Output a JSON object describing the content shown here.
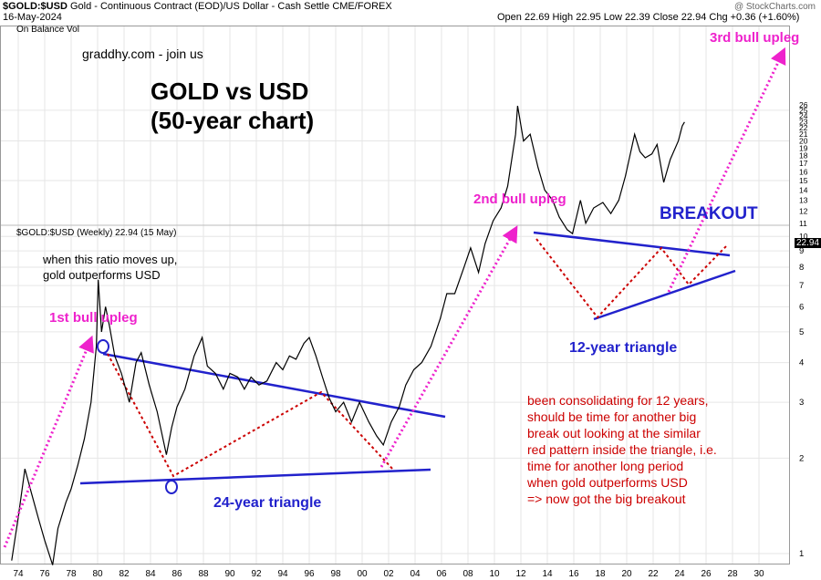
{
  "header": {
    "symbol": "$GOLD:$USD",
    "description": "Gold - Continuous Contract (EOD)/US Dollar - Cash Settle",
    "exchange": "CME/FOREX",
    "date": "16-May-2024",
    "credit": "@ StockCharts.com",
    "ohlc": "Open 22.69  High 22.95  Low 22.39  Close 22.94  Chg +0.36 (+1.60%)"
  },
  "indicator_label": "On Balance Vol",
  "price_label": "$GOLD:$USD (Weekly) 22.94 (15 May)",
  "last_value": "22.94",
  "watermark": "graddhy.com - join us",
  "title_line1": "GOLD vs USD",
  "title_line2": "(50-year chart)",
  "annotations": {
    "ratio_note_1": "when this ratio moves up,",
    "ratio_note_2": "gold outperforms USD",
    "upleg1": "1st bull upleg",
    "upleg2": "2nd bull upleg",
    "upleg3": "3rd bull upleg",
    "breakout": "BREAKOUT",
    "tri12": "12-year triangle",
    "tri24": "24-year triangle",
    "red_note": "been consolidating for 12 years,\nshould be time for another big\nbreak out looking at the similar\nred pattern inside the triangle, i.e.\ntime for another long period\nwhen gold outperforms USD\n=> now got the big breakout"
  },
  "colors": {
    "price_line": "#000000",
    "trendline": "#2222cc",
    "upleg_arrow": "#ee22cc",
    "pattern": "#cc0000",
    "grid": "#e6e6e6"
  },
  "chart_data": {
    "type": "line",
    "title": "GOLD vs USD (50-year chart)",
    "y_scale": "log",
    "x_ticks": [
      "74",
      "76",
      "78",
      "80",
      "82",
      "84",
      "86",
      "88",
      "90",
      "92",
      "94",
      "96",
      "98",
      "00",
      "02",
      "04",
      "06",
      "08",
      "10",
      "12",
      "14",
      "16",
      "18",
      "20",
      "22",
      "24",
      "26",
      "28",
      "30"
    ],
    "y_ticks": [
      1,
      2,
      3,
      4,
      5,
      6,
      7,
      8,
      9,
      10,
      11,
      12,
      13,
      14,
      15,
      16,
      17,
      18,
      19,
      20,
      21,
      22,
      23,
      24,
      25,
      26
    ],
    "series": [
      {
        "name": "$GOLD:$USD (Weekly)",
        "points": [
          [
            1973.5,
            0.95
          ],
          [
            1974.0,
            1.3
          ],
          [
            1974.5,
            1.85
          ],
          [
            1975.0,
            1.55
          ],
          [
            1975.5,
            1.3
          ],
          [
            1976.0,
            1.1
          ],
          [
            1976.6,
            0.92
          ],
          [
            1977.0,
            1.2
          ],
          [
            1977.6,
            1.45
          ],
          [
            1978.0,
            1.6
          ],
          [
            1978.5,
            1.9
          ],
          [
            1979.0,
            2.3
          ],
          [
            1979.5,
            3.0
          ],
          [
            1979.9,
            4.5
          ],
          [
            1980.05,
            7.3
          ],
          [
            1980.3,
            5.0
          ],
          [
            1980.6,
            6.0
          ],
          [
            1980.9,
            5.2
          ],
          [
            1981.3,
            4.2
          ],
          [
            1981.8,
            3.7
          ],
          [
            1982.4,
            3.0
          ],
          [
            1982.9,
            4.0
          ],
          [
            1983.3,
            4.3
          ],
          [
            1983.9,
            3.4
          ],
          [
            1984.5,
            2.8
          ],
          [
            1985.2,
            2.05
          ],
          [
            1985.6,
            2.5
          ],
          [
            1986.0,
            2.9
          ],
          [
            1986.6,
            3.3
          ],
          [
            1987.3,
            4.2
          ],
          [
            1987.9,
            4.8
          ],
          [
            1988.3,
            3.9
          ],
          [
            1988.9,
            3.7
          ],
          [
            1989.5,
            3.3
          ],
          [
            1990.0,
            3.7
          ],
          [
            1990.6,
            3.6
          ],
          [
            1991.1,
            3.3
          ],
          [
            1991.6,
            3.6
          ],
          [
            1992.2,
            3.4
          ],
          [
            1992.8,
            3.5
          ],
          [
            1993.5,
            4.0
          ],
          [
            1994.0,
            3.8
          ],
          [
            1994.5,
            4.2
          ],
          [
            1995.0,
            4.1
          ],
          [
            1995.6,
            4.6
          ],
          [
            1996.0,
            4.8
          ],
          [
            1996.5,
            4.2
          ],
          [
            1997.0,
            3.6
          ],
          [
            1997.5,
            3.1
          ],
          [
            1998.0,
            2.8
          ],
          [
            1998.6,
            3.0
          ],
          [
            1999.2,
            2.6
          ],
          [
            1999.8,
            3.0
          ],
          [
            2000.5,
            2.6
          ],
          [
            2001.1,
            2.35
          ],
          [
            2001.6,
            2.2
          ],
          [
            2002.2,
            2.6
          ],
          [
            2002.8,
            2.9
          ],
          [
            2003.3,
            3.4
          ],
          [
            2003.9,
            3.8
          ],
          [
            2004.5,
            4.0
          ],
          [
            2005.2,
            4.5
          ],
          [
            2005.9,
            5.5
          ],
          [
            2006.4,
            6.6
          ],
          [
            2007.0,
            6.6
          ],
          [
            2007.7,
            8.0
          ],
          [
            2008.2,
            9.2
          ],
          [
            2008.8,
            7.7
          ],
          [
            2009.3,
            9.5
          ],
          [
            2009.9,
            11.2
          ],
          [
            2010.5,
            12.3
          ],
          [
            2011.0,
            14.4
          ],
          [
            2011.6,
            21.0
          ],
          [
            2011.75,
            25.8
          ],
          [
            2012.2,
            20.0
          ],
          [
            2012.7,
            21.0
          ],
          [
            2013.3,
            16.5
          ],
          [
            2013.8,
            14.0
          ],
          [
            2014.4,
            13.0
          ],
          [
            2014.9,
            11.5
          ],
          [
            2015.5,
            10.5
          ],
          [
            2015.9,
            10.2
          ],
          [
            2016.5,
            13.0
          ],
          [
            2016.9,
            11.0
          ],
          [
            2017.5,
            12.3
          ],
          [
            2018.2,
            12.8
          ],
          [
            2018.8,
            11.8
          ],
          [
            2019.4,
            13.0
          ],
          [
            2019.9,
            15.5
          ],
          [
            2020.6,
            21.0
          ],
          [
            2021.0,
            18.5
          ],
          [
            2021.4,
            17.7
          ],
          [
            2021.9,
            18.2
          ],
          [
            2022.3,
            19.5
          ],
          [
            2022.8,
            14.8
          ],
          [
            2023.3,
            17.5
          ],
          [
            2023.9,
            20.0
          ],
          [
            2024.2,
            22.3
          ],
          [
            2024.37,
            22.94
          ]
        ]
      }
    ]
  }
}
